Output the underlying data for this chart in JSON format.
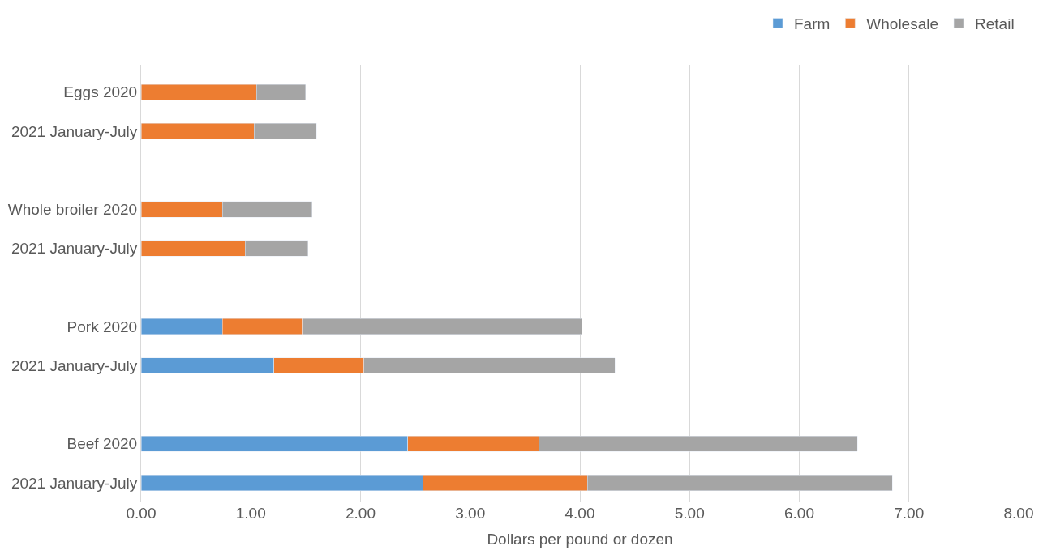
{
  "chart_data": {
    "type": "bar",
    "orientation": "horizontal",
    "stacked": true,
    "xlabel": "Dollars per pound or dozen",
    "categories": [
      "Eggs 2020",
      "2021 January-July",
      null,
      "Whole broiler 2020",
      "2021 January-July",
      null,
      "Pork 2020",
      "2021 January-July",
      null,
      "Beef 2020",
      "2021 January-July"
    ],
    "series": [
      {
        "name": "Farm",
        "color": "#5b9bd5",
        "values": [
          null,
          null,
          null,
          null,
          null,
          null,
          0.74,
          1.21,
          null,
          2.43,
          2.57
        ]
      },
      {
        "name": "Wholesale",
        "color": "#ed7d31",
        "values": [
          1.05,
          1.03,
          null,
          0.74,
          0.95,
          null,
          0.73,
          0.82,
          null,
          1.2,
          1.5
        ]
      },
      {
        "name": "Retail",
        "color": "#a5a5a5",
        "values": [
          0.45,
          0.57,
          null,
          0.82,
          0.57,
          null,
          2.55,
          2.29,
          null,
          2.9,
          2.78
        ]
      }
    ],
    "xlim": [
      0,
      8
    ],
    "xticks": [
      {
        "value": 0,
        "label": "0.00"
      },
      {
        "value": 1,
        "label": "1.00"
      },
      {
        "value": 2,
        "label": "2.00"
      },
      {
        "value": 3,
        "label": "3.00"
      },
      {
        "value": 4,
        "label": "4.00"
      },
      {
        "value": 5,
        "label": "5.00"
      },
      {
        "value": 6,
        "label": "6.00"
      },
      {
        "value": 7,
        "label": "7.00"
      },
      {
        "value": 8,
        "label": "8.00"
      }
    ],
    "grid": "x",
    "legend": "top right"
  }
}
